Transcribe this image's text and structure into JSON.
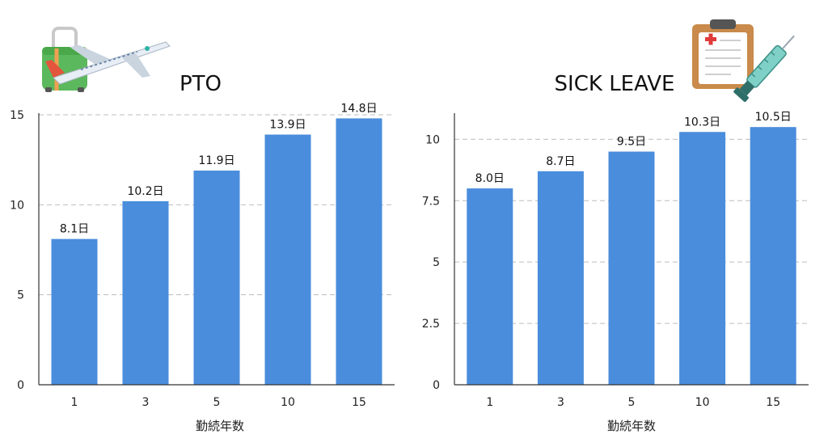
{
  "chart_data": [
    {
      "type": "bar",
      "title": "PTO",
      "categories": [
        "1",
        "3",
        "5",
        "10",
        "15"
      ],
      "values": [
        8.1,
        10.2,
        11.9,
        13.9,
        14.8
      ],
      "data_labels": [
        "8.1日",
        "10.2日",
        "11.9日",
        "13.9日",
        "14.8日"
      ],
      "yticks": [
        "0",
        "5",
        "10",
        "15"
      ],
      "ylim": [
        0,
        15
      ],
      "xlabel": "勤続年数",
      "ylabel": "",
      "grid": true,
      "bar_color": "#4a8ddc",
      "icon": "luggage-airplane-icon"
    },
    {
      "type": "bar",
      "title": "SICK LEAVE",
      "categories": [
        "1",
        "3",
        "5",
        "10",
        "15"
      ],
      "values": [
        8.0,
        8.7,
        9.5,
        10.3,
        10.5
      ],
      "data_labels": [
        "8.0日",
        "8.7日",
        "9.5日",
        "10.3日",
        "10.5日"
      ],
      "yticks": [
        "0",
        "2.5",
        "5",
        "7.5",
        "10"
      ],
      "ylim": [
        0,
        11
      ],
      "xlabel": "勤続年数",
      "ylabel": "",
      "grid": true,
      "bar_color": "#4a8ddc",
      "icon": "clipboard-syringe-icon"
    }
  ]
}
